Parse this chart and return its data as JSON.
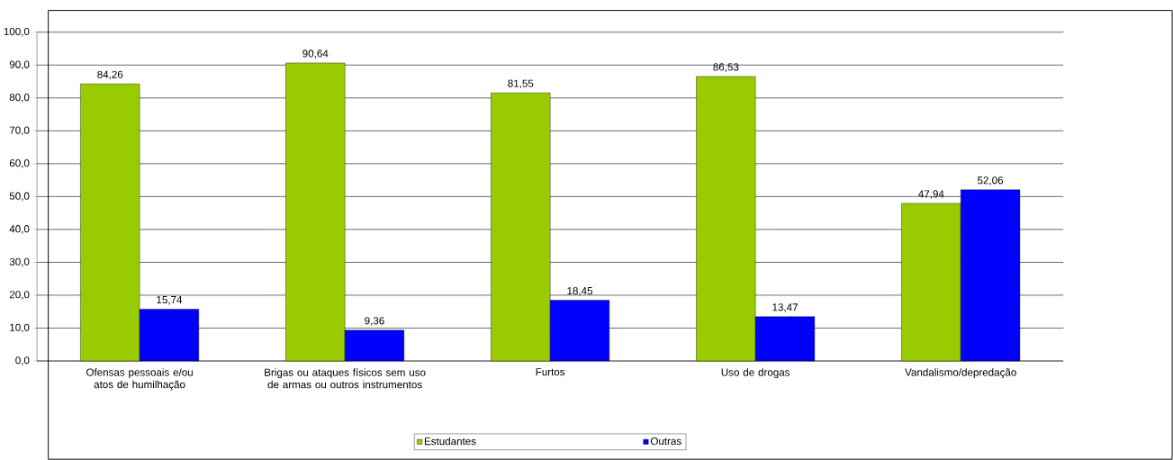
{
  "chart_data": {
    "type": "bar",
    "categories": [
      "Ofensas pessoais e/ou atos de humilhação",
      "Brigas ou ataques físicos sem uso de armas ou outros instrumentos",
      "Furtos",
      "Uso de drogas",
      "Vandalismo/depredação"
    ],
    "series": [
      {
        "name": "Estudantes",
        "color": "#99cc00",
        "values": [
          84.26,
          90.64,
          81.55,
          86.53,
          47.94
        ],
        "value_labels": [
          "84,26",
          "90,64",
          "81,55",
          "86,53",
          "47,94"
        ]
      },
      {
        "name": "Outras",
        "color": "#0000ff",
        "values": [
          15.74,
          9.36,
          18.45,
          13.47,
          52.06
        ],
        "value_labels": [
          "15,74",
          "9,36",
          "18,45",
          "13,47",
          "52,06"
        ]
      }
    ],
    "ylim": [
      0,
      100
    ],
    "yticks": [
      {
        "value": 0,
        "label": "0,0"
      },
      {
        "value": 10,
        "label": "10,0"
      },
      {
        "value": 20,
        "label": "20,0"
      },
      {
        "value": 30,
        "label": "30,0"
      },
      {
        "value": 40,
        "label": "40,0"
      },
      {
        "value": 50,
        "label": "50,0"
      },
      {
        "value": 60,
        "label": "60,0"
      },
      {
        "value": 70,
        "label": "70,0"
      },
      {
        "value": 80,
        "label": "80,0"
      },
      {
        "value": 90,
        "label": "90,0"
      },
      {
        "value": 100,
        "label": "100,0"
      }
    ],
    "grid": "y",
    "legend": "bottom"
  }
}
